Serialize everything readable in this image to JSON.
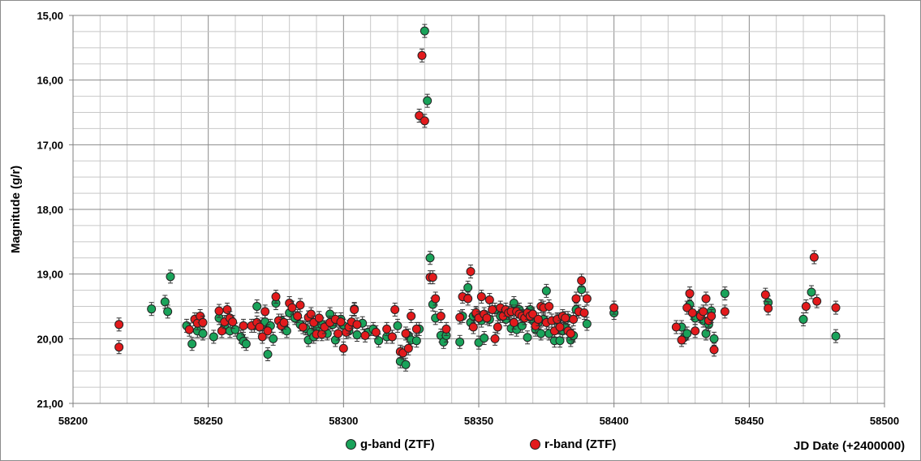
{
  "chart_data": {
    "type": "scatter",
    "title": "",
    "xlabel": "JD Date (+2400000)",
    "ylabel": "Magnitude (g/r)",
    "xlim": [
      58200,
      58500
    ],
    "ylim": [
      15,
      21
    ],
    "y_reversed": true,
    "grid": true,
    "legend_position": "bottom-center",
    "x_ticks": [
      "58200",
      "58250",
      "58300",
      "58350",
      "58400",
      "58450",
      "58500"
    ],
    "y_ticks": [
      "15,00",
      "16,00",
      "17,00",
      "18,00",
      "19,00",
      "20,00",
      "21,00"
    ],
    "series": [
      {
        "name": "g-band (ZTF)",
        "color": "#1aa35a",
        "points": [
          [
            58229,
            19.54
          ],
          [
            58234,
            19.43
          ],
          [
            58235,
            19.58
          ],
          [
            58236,
            19.04
          ],
          [
            58242,
            19.8
          ],
          [
            58244,
            20.08
          ],
          [
            58246,
            19.88
          ],
          [
            58248,
            19.92
          ],
          [
            58252,
            19.97
          ],
          [
            58254,
            19.68
          ],
          [
            58256,
            19.82
          ],
          [
            58258,
            19.88
          ],
          [
            58260,
            19.86
          ],
          [
            58262,
            19.97
          ],
          [
            58263,
            20.04
          ],
          [
            58264,
            20.08
          ],
          [
            58267,
            19.8
          ],
          [
            58268,
            19.5
          ],
          [
            58270,
            19.78
          ],
          [
            58271,
            19.74
          ],
          [
            58272,
            20.24
          ],
          [
            58273,
            19.8
          ],
          [
            58274,
            20.0
          ],
          [
            58275,
            19.45
          ],
          [
            58277,
            19.72
          ],
          [
            58278,
            19.82
          ],
          [
            58279,
            19.88
          ],
          [
            58280,
            19.6
          ],
          [
            58282,
            19.68
          ],
          [
            58284,
            19.78
          ],
          [
            58286,
            19.84
          ],
          [
            58287,
            20.02
          ],
          [
            58288,
            19.9
          ],
          [
            58289,
            19.97
          ],
          [
            58290,
            19.82
          ],
          [
            58292,
            19.78
          ],
          [
            58294,
            19.92
          ],
          [
            58295,
            19.62
          ],
          [
            58296,
            19.78
          ],
          [
            58297,
            20.02
          ],
          [
            58299,
            19.7
          ],
          [
            58300,
            19.8
          ],
          [
            58302,
            19.88
          ],
          [
            58304,
            19.54
          ],
          [
            58305,
            19.94
          ],
          [
            58307,
            19.76
          ],
          [
            58309,
            19.9
          ],
          [
            58311,
            19.85
          ],
          [
            58313,
            20.03
          ],
          [
            58316,
            19.97
          ],
          [
            58318,
            19.97
          ],
          [
            58320,
            19.8
          ],
          [
            58321,
            20.35
          ],
          [
            58323,
            20.4
          ],
          [
            58324,
            19.95
          ],
          [
            58325,
            20.02
          ],
          [
            58327,
            20.03
          ],
          [
            58328,
            19.85
          ],
          [
            58330,
            15.24
          ],
          [
            58331,
            16.32
          ],
          [
            58332,
            18.75
          ],
          [
            58333,
            19.47
          ],
          [
            58334,
            19.68
          ],
          [
            58336,
            19.95
          ],
          [
            58337,
            20.05
          ],
          [
            58338,
            19.95
          ],
          [
            58343,
            20.05
          ],
          [
            58344,
            19.65
          ],
          [
            58346,
            19.21
          ],
          [
            58347,
            19.75
          ],
          [
            58348,
            19.65
          ],
          [
            58349,
            19.62
          ],
          [
            58350,
            20.06
          ],
          [
            58351,
            19.72
          ],
          [
            58352,
            19.99
          ],
          [
            58354,
            19.7
          ],
          [
            58356,
            19.55
          ],
          [
            58358,
            19.65
          ],
          [
            58360,
            19.7
          ],
          [
            58362,
            19.84
          ],
          [
            58363,
            19.45
          ],
          [
            58364,
            19.86
          ],
          [
            58365,
            19.55
          ],
          [
            58366,
            19.8
          ],
          [
            58368,
            19.98
          ],
          [
            58369,
            19.55
          ],
          [
            58370,
            19.72
          ],
          [
            58371,
            19.86
          ],
          [
            58372,
            19.75
          ],
          [
            58373,
            19.92
          ],
          [
            58374,
            19.7
          ],
          [
            58375,
            19.26
          ],
          [
            58376,
            19.92
          ],
          [
            58378,
            20.03
          ],
          [
            58379,
            19.72
          ],
          [
            58380,
            20.03
          ],
          [
            58381,
            19.88
          ],
          [
            58382,
            19.82
          ],
          [
            58383,
            19.68
          ],
          [
            58384,
            20.02
          ],
          [
            58385,
            19.95
          ],
          [
            58386,
            19.55
          ],
          [
            58388,
            19.24
          ],
          [
            58390,
            19.77
          ],
          [
            58400,
            19.6
          ],
          [
            58425,
            19.82
          ],
          [
            58426,
            19.98
          ],
          [
            58427,
            19.92
          ],
          [
            58428,
            19.47
          ],
          [
            58430,
            19.68
          ],
          [
            58432,
            19.62
          ],
          [
            58433,
            19.72
          ],
          [
            58434,
            19.92
          ],
          [
            58435,
            19.78
          ],
          [
            58436,
            19.57
          ],
          [
            58437,
            20.0
          ],
          [
            58441,
            19.3
          ],
          [
            58457,
            19.44
          ],
          [
            58470,
            19.7
          ],
          [
            58473,
            19.28
          ],
          [
            58482,
            19.96
          ]
        ]
      },
      {
        "name": "r-band (ZTF)",
        "color": "#e31a1c",
        "points": [
          [
            58217,
            19.78
          ],
          [
            58217,
            20.13
          ],
          [
            58243,
            19.86
          ],
          [
            58245,
            19.7
          ],
          [
            58246,
            19.76
          ],
          [
            58247,
            19.65
          ],
          [
            58248,
            19.75
          ],
          [
            58254,
            19.57
          ],
          [
            58255,
            19.88
          ],
          [
            58256,
            19.74
          ],
          [
            58257,
            19.55
          ],
          [
            58258,
            19.68
          ],
          [
            58259,
            19.74
          ],
          [
            58263,
            19.8
          ],
          [
            58266,
            19.8
          ],
          [
            58268,
            19.75
          ],
          [
            58269,
            19.82
          ],
          [
            58270,
            19.97
          ],
          [
            58271,
            19.58
          ],
          [
            58272,
            19.88
          ],
          [
            58275,
            19.35
          ],
          [
            58276,
            19.72
          ],
          [
            58277,
            19.8
          ],
          [
            58278,
            19.75
          ],
          [
            58280,
            19.45
          ],
          [
            58281,
            19.52
          ],
          [
            58283,
            19.65
          ],
          [
            58284,
            19.48
          ],
          [
            58285,
            19.82
          ],
          [
            58287,
            19.67
          ],
          [
            58288,
            19.62
          ],
          [
            58289,
            19.75
          ],
          [
            58290,
            19.93
          ],
          [
            58291,
            19.68
          ],
          [
            58292,
            19.93
          ],
          [
            58293,
            19.82
          ],
          [
            58295,
            19.75
          ],
          [
            58297,
            19.7
          ],
          [
            58298,
            19.92
          ],
          [
            58299,
            19.74
          ],
          [
            58300,
            20.15
          ],
          [
            58301,
            19.9
          ],
          [
            58302,
            19.82
          ],
          [
            58303,
            19.74
          ],
          [
            58304,
            19.55
          ],
          [
            58305,
            19.78
          ],
          [
            58308,
            19.95
          ],
          [
            58312,
            19.9
          ],
          [
            58316,
            19.85
          ],
          [
            58318,
            19.97
          ],
          [
            58319,
            19.55
          ],
          [
            58321,
            20.2
          ],
          [
            58322,
            20.22
          ],
          [
            58323,
            19.92
          ],
          [
            58324,
            20.15
          ],
          [
            58325,
            19.65
          ],
          [
            58327,
            19.85
          ],
          [
            58328,
            16.55
          ],
          [
            58329,
            15.62
          ],
          [
            58330,
            16.63
          ],
          [
            58332,
            19.05
          ],
          [
            58333,
            19.05
          ],
          [
            58334,
            19.38
          ],
          [
            58336,
            19.65
          ],
          [
            58338,
            19.85
          ],
          [
            58343,
            19.67
          ],
          [
            58344,
            19.35
          ],
          [
            58346,
            19.38
          ],
          [
            58347,
            18.96
          ],
          [
            58348,
            19.82
          ],
          [
            58349,
            19.6
          ],
          [
            58350,
            19.68
          ],
          [
            58351,
            19.35
          ],
          [
            58352,
            19.62
          ],
          [
            58353,
            19.68
          ],
          [
            58354,
            19.4
          ],
          [
            58355,
            19.55
          ],
          [
            58356,
            20.0
          ],
          [
            58357,
            19.82
          ],
          [
            58358,
            19.52
          ],
          [
            58359,
            19.65
          ],
          [
            58360,
            19.55
          ],
          [
            58361,
            19.6
          ],
          [
            58362,
            19.58
          ],
          [
            58363,
            19.75
          ],
          [
            58364,
            19.58
          ],
          [
            58365,
            19.62
          ],
          [
            58366,
            19.65
          ],
          [
            58367,
            19.68
          ],
          [
            58368,
            19.6
          ],
          [
            58369,
            19.65
          ],
          [
            58370,
            19.62
          ],
          [
            58371,
            19.8
          ],
          [
            58372,
            19.7
          ],
          [
            58373,
            19.5
          ],
          [
            58374,
            19.52
          ],
          [
            58375,
            19.75
          ],
          [
            58376,
            19.5
          ],
          [
            58377,
            19.72
          ],
          [
            58378,
            19.88
          ],
          [
            58379,
            19.7
          ],
          [
            58380,
            19.82
          ],
          [
            58381,
            19.65
          ],
          [
            58382,
            19.68
          ],
          [
            58383,
            19.88
          ],
          [
            58384,
            19.92
          ],
          [
            58385,
            19.7
          ],
          [
            58386,
            19.38
          ],
          [
            58387,
            19.58
          ],
          [
            58388,
            19.1
          ],
          [
            58389,
            19.6
          ],
          [
            58390,
            19.38
          ],
          [
            58400,
            19.52
          ],
          [
            58423,
            19.82
          ],
          [
            58425,
            20.02
          ],
          [
            58427,
            19.52
          ],
          [
            58428,
            19.3
          ],
          [
            58429,
            19.6
          ],
          [
            58430,
            19.88
          ],
          [
            58432,
            19.65
          ],
          [
            58433,
            19.58
          ],
          [
            58434,
            19.38
          ],
          [
            58435,
            19.72
          ],
          [
            58436,
            19.65
          ],
          [
            58437,
            20.17
          ],
          [
            58441,
            19.58
          ],
          [
            58456,
            19.32
          ],
          [
            58457,
            19.53
          ],
          [
            58471,
            19.5
          ],
          [
            58474,
            18.74
          ],
          [
            58475,
            19.42
          ],
          [
            58482,
            19.52
          ]
        ]
      }
    ]
  }
}
